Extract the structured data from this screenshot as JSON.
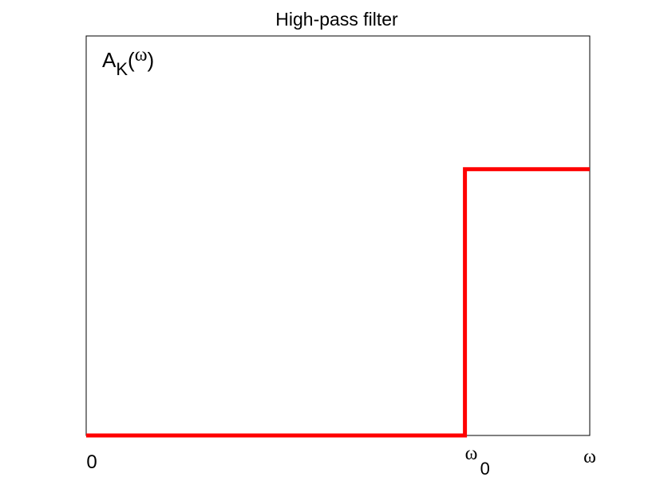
{
  "chart_data": {
    "type": "line",
    "title": "High-pass filter",
    "ylabel": {
      "main": "A",
      "subscript": "K",
      "open_paren": "(",
      "variable": "ω",
      "close_paren": ")"
    },
    "xlabel": "ω",
    "x_tick_labels": [
      {
        "label": "0",
        "subscript": ""
      },
      {
        "label": "ω",
        "subscript": "0"
      }
    ],
    "x_tick_values": [
      0,
      4.25
    ],
    "xlim": [
      0,
      5.65
    ],
    "ylim": [
      0,
      1.5
    ],
    "grid": false,
    "legend": "none",
    "series": [
      {
        "color": "#ff0000",
        "x": [
          0,
          4.25,
          4.25,
          5.65
        ],
        "y": [
          0,
          0,
          1,
          1
        ]
      }
    ]
  }
}
